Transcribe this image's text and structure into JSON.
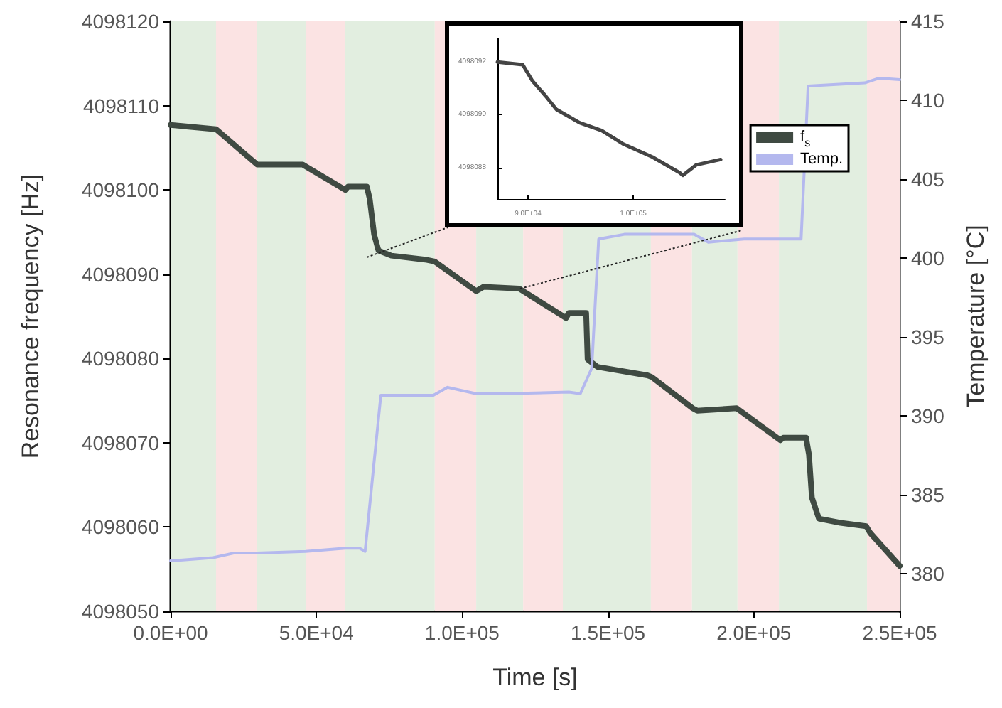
{
  "chart_data": [
    {
      "type": "line",
      "xlabel": "Time [s]",
      "ylabel": "Resonance frequency [Hz]",
      "y2label": "Temperature [°C]",
      "xlim": [
        0,
        250000
      ],
      "xticks": [
        {
          "value": 0,
          "label": "0.0E+00"
        },
        {
          "value": 50000,
          "label": "5.0E+04"
        },
        {
          "value": 100000,
          "label": "1.0E+05"
        },
        {
          "value": 150000,
          "label": "1.5E+05"
        },
        {
          "value": 200000,
          "label": "2.0E+05"
        },
        {
          "value": 250000,
          "label": "2.5E+05"
        }
      ],
      "ylim": [
        4098050,
        4098120
      ],
      "yticks": [
        4098050,
        4098060,
        4098070,
        4098080,
        4098090,
        4098100,
        4098110,
        4098120
      ],
      "y2lim": [
        377.6,
        415
      ],
      "y2ticks": [
        380,
        385,
        390,
        395,
        400,
        405,
        410,
        415
      ],
      "legend": "top right",
      "series": [
        {
          "name": "f$_{s}$",
          "color": "#3f4a42",
          "x": [
            0,
            15600,
            29700,
            45300,
            46300,
            59900,
            60900,
            67300,
            68300,
            69800,
            71300,
            75700,
            87900,
            90600,
            104800,
            107300,
            119500,
            135600,
            136600,
            142500,
            143000,
            146400,
            163500,
            165000,
            179000,
            180600,
            194100,
            209100,
            210100,
            217900,
            218900,
            219900,
            222300,
            229700,
            238500,
            239900,
            250000
          ],
          "values": [
            4098107.7,
            4098107.2,
            4098103.0,
            4098103.0,
            4098102.8,
            4098100.0,
            4098100.4,
            4098100.4,
            4098098.9,
            4098094.7,
            4098092.8,
            4098092.2,
            4098091.7,
            4098091.5,
            4098088.0,
            4098088.5,
            4098088.3,
            4098084.8,
            4098085.4,
            4098085.4,
            4098079.9,
            4098079.0,
            4098078.0,
            4098077.8,
            4098074.1,
            4098073.8,
            4098074.1,
            4098070.3,
            4098070.6,
            4098070.6,
            4098068.6,
            4098063.5,
            4098061.0,
            4098060.5,
            4098060.1,
            4098059.3,
            4098055.4
          ]
        },
        {
          "name": "Temp.",
          "color": "#b4b8ee",
          "axis": "y2",
          "x": [
            0,
            14600,
            21900,
            29700,
            46300,
            59900,
            64800,
            66700,
            72100,
            90100,
            95000,
            104800,
            114600,
            136600,
            140500,
            144400,
            146800,
            155600,
            179500,
            184400,
            196600,
            203000,
            216200,
            218600,
            238000,
            243000,
            250000
          ],
          "values": [
            380.8,
            381.0,
            381.3,
            381.3,
            381.4,
            381.6,
            381.6,
            381.4,
            391.3,
            391.3,
            391.8,
            391.4,
            391.4,
            391.5,
            391.4,
            393.0,
            401.2,
            401.5,
            401.5,
            401.0,
            401.2,
            401.2,
            401.2,
            410.9,
            411.1,
            411.4,
            411.3
          ]
        }
      ],
      "bands": [
        {
          "axis": "x",
          "from": 0,
          "to": 15600,
          "color": "#e2eee0"
        },
        {
          "axis": "x",
          "from": 15600,
          "to": 29700,
          "color": "#fbe3e3"
        },
        {
          "axis": "x",
          "from": 29700,
          "to": 46300,
          "color": "#e2eee0"
        },
        {
          "axis": "x",
          "from": 46300,
          "to": 59900,
          "color": "#fbe3e3"
        },
        {
          "axis": "x",
          "from": 59900,
          "to": 90600,
          "color": "#e2eee0"
        },
        {
          "axis": "x",
          "from": 90600,
          "to": 104800,
          "color": "#fbe3e3"
        },
        {
          "axis": "x",
          "from": 104800,
          "to": 120900,
          "color": "#e2eee0"
        },
        {
          "axis": "x",
          "from": 120900,
          "to": 134500,
          "color": "#fbe3e3"
        },
        {
          "axis": "x",
          "from": 134500,
          "to": 164700,
          "color": "#e2eee0"
        },
        {
          "axis": "x",
          "from": 164700,
          "to": 178800,
          "color": "#fbe3e3"
        },
        {
          "axis": "x",
          "from": 178800,
          "to": 194400,
          "color": "#e2eee0"
        },
        {
          "axis": "x",
          "from": 194400,
          "to": 208600,
          "color": "#fbe3e3"
        },
        {
          "axis": "x",
          "from": 208600,
          "to": 238800,
          "color": "#e2eee0"
        },
        {
          "axis": "x",
          "from": 238800,
          "to": 250000,
          "color": "#fbe3e3"
        }
      ]
    },
    {
      "type": "line",
      "xlim": [
        87100,
        108700
      ],
      "ylim": [
        4098086.8,
        4098092.9
      ],
      "xticks": [
        {
          "value": 90000,
          "label": "9.0E+04"
        },
        {
          "value": 100000,
          "label": "1.0E+05"
        }
      ],
      "yticks": [
        4098088,
        4098090,
        4098092
      ],
      "series": [
        {
          "color": "#444444",
          "x": [
            87100,
            89500,
            90400,
            91700,
            92700,
            94900,
            97000,
            99000,
            101800,
            104400,
            104700,
            106000,
            108300
          ],
          "values": [
            4098092.0,
            4098091.9,
            4098091.3,
            4098090.7,
            4098090.2,
            4098089.7,
            4098089.4,
            4098088.9,
            4098088.4,
            4098087.8,
            4098087.7,
            4098088.1,
            4098088.3
          ]
        }
      ]
    }
  ]
}
